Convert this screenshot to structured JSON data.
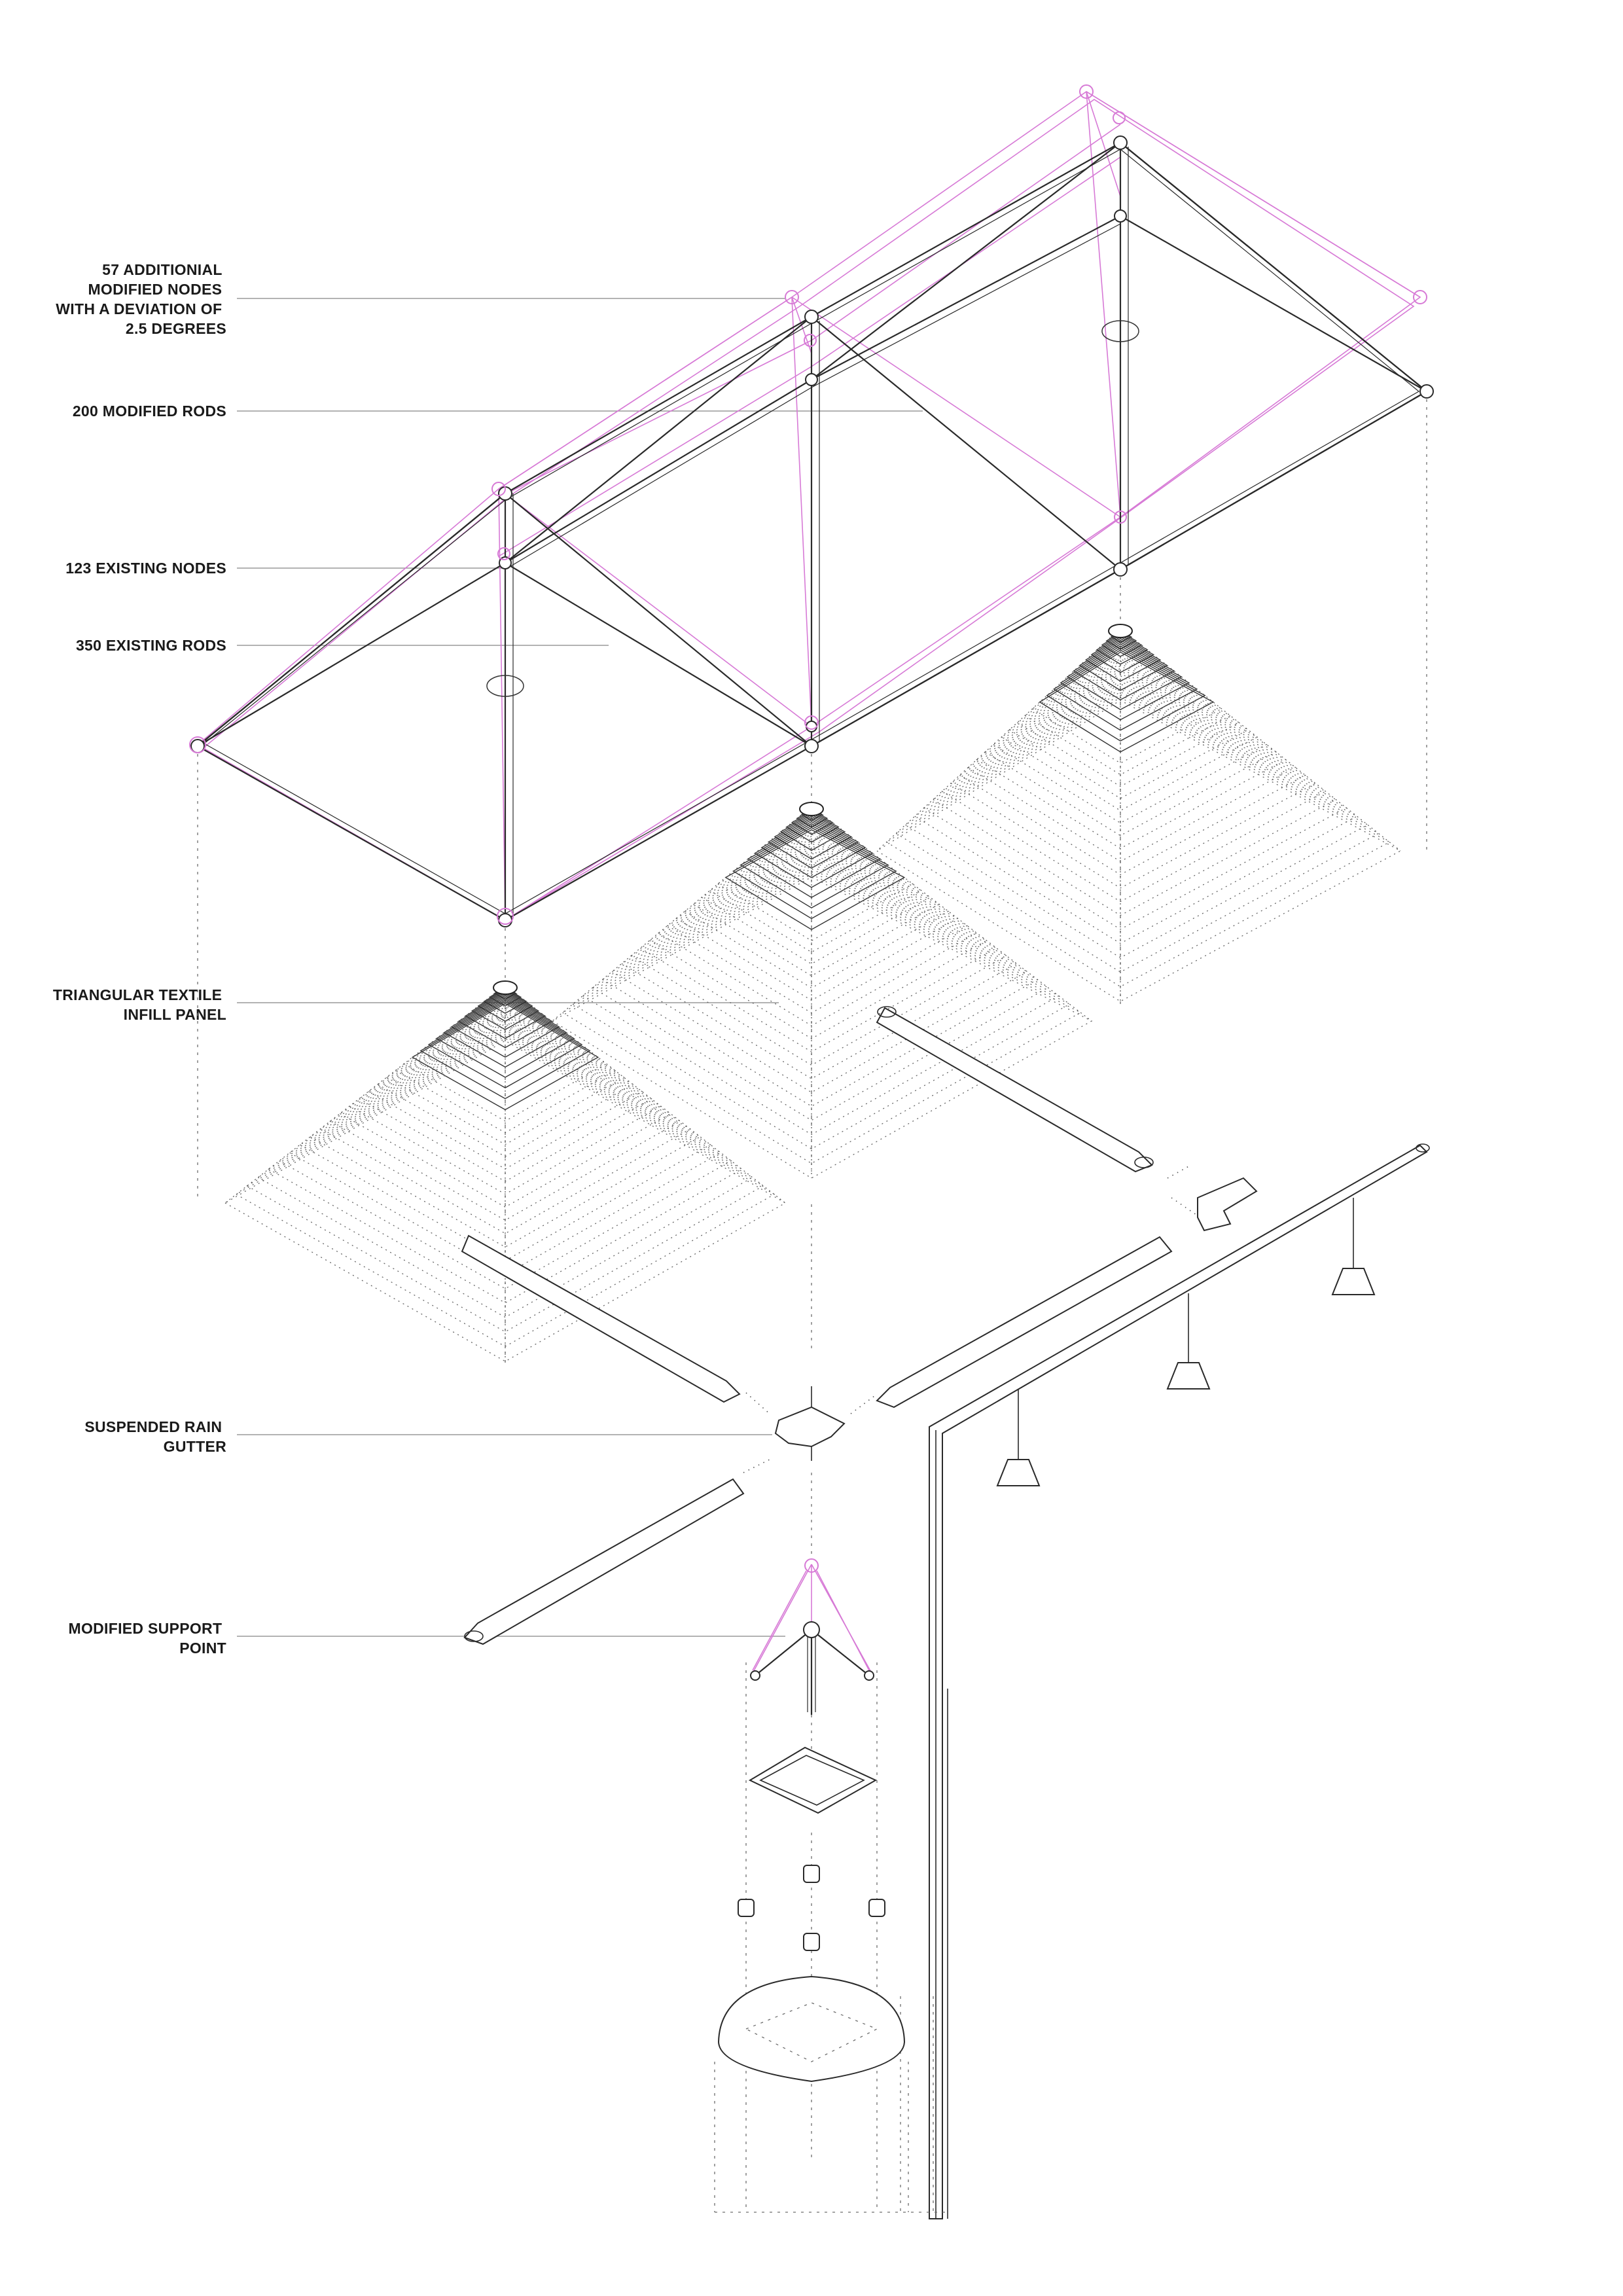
{
  "labels": {
    "modified_nodes": [
      "57 ADDITIONIAL",
      "MODIFIED NODES",
      "WITH A DEVIATION OF",
      "2.5 DEGREES"
    ],
    "modified_rods": [
      "200 MODIFIED RODS"
    ],
    "existing_nodes": [
      "123 EXISTING NODES"
    ],
    "existing_rods": [
      "350 EXISTING RODS"
    ],
    "textile_panel": [
      "TRIANGULAR TEXTILE",
      "INFILL PANEL"
    ],
    "rain_gutter": [
      "SUSPENDED RAIN",
      "GUTTER"
    ],
    "support_point": [
      "MODIFIED SUPPORT",
      "POINT"
    ]
  },
  "colors": {
    "existing": "#2a2a2a",
    "modified": "#d77ad6",
    "leader": "#9a9a9a",
    "background": "#ffffff"
  }
}
